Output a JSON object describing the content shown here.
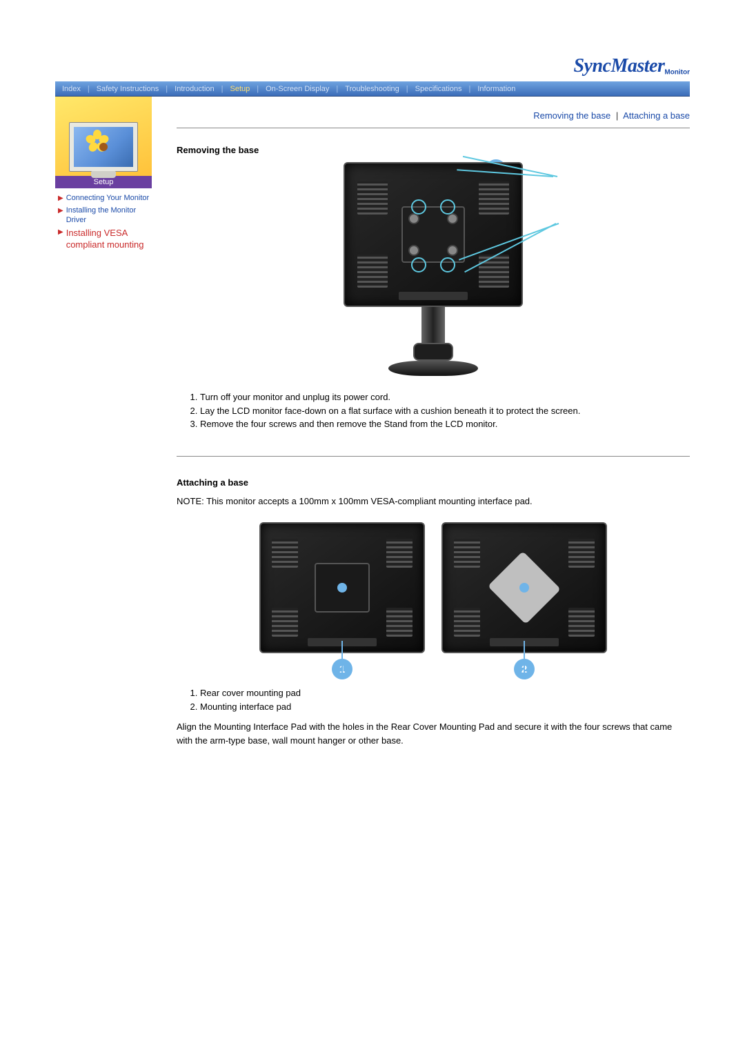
{
  "brand": {
    "name": "SyncMaster",
    "sub": "Monitor"
  },
  "nav": {
    "items": [
      "Index",
      "Safety Instructions",
      "Introduction",
      "Setup",
      "On-Screen Display",
      "Troubleshooting",
      "Specifications",
      "Information"
    ],
    "active_index": 3
  },
  "sidebar": {
    "section_label": "Setup",
    "links": [
      {
        "text": "Connecting Your Monitor",
        "active": false
      },
      {
        "text": "Installing the Monitor Driver",
        "active": false
      },
      {
        "text": "Installing VESA compliant mounting",
        "active": true
      }
    ]
  },
  "anchors": {
    "a": "Removing the base",
    "b": "Attaching a base",
    "sep": "|"
  },
  "removing": {
    "heading": "Removing the base",
    "callout": "a",
    "steps": [
      "Turn off your monitor and unplug its power cord.",
      "Lay the LCD monitor face-down on a flat surface with a cushion beneath it to protect the screen.",
      "Remove the four screws and then remove the Stand from the LCD monitor."
    ]
  },
  "attaching": {
    "heading": "Attaching a base",
    "note": "NOTE: This monitor accepts a 100mm x 100mm VESA-compliant mounting interface pad.",
    "labels": {
      "1": "1",
      "2": "2"
    },
    "items": [
      "Rear cover mounting pad",
      "Mounting interface pad"
    ],
    "para": "Align the Mounting Interface Pad with the holes in the Rear Cover Mounting Pad and secure it with the four screws that came with the arm-type base, wall mount hanger or other base."
  },
  "colors": {
    "link": "#1a4aa8",
    "active": "#c92a2a",
    "callout": "#6fb4e8"
  }
}
